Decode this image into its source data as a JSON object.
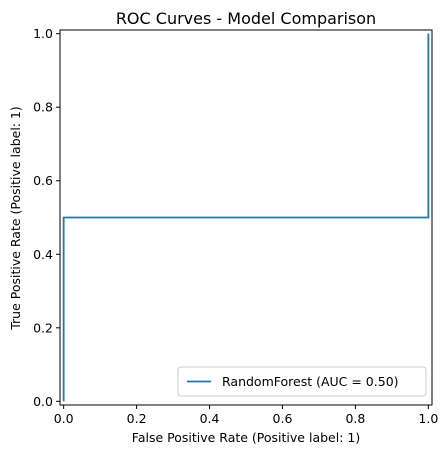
{
  "chart_data": {
    "type": "line",
    "title": "ROC Curves - Model Comparison",
    "xlabel": "False Positive Rate (Positive label: 1)",
    "ylabel": "True Positive Rate (Positive label: 1)",
    "xlim": [
      -0.01,
      1.01
    ],
    "ylim": [
      -0.01,
      1.01
    ],
    "x_ticks": [
      0.0,
      0.2,
      0.4,
      0.6,
      0.8,
      1.0
    ],
    "x_tick_labels": [
      "0.0",
      "0.2",
      "0.4",
      "0.6",
      "0.8",
      "1.0"
    ],
    "y_ticks": [
      0.0,
      0.2,
      0.4,
      0.6,
      0.8,
      1.0
    ],
    "y_tick_labels": [
      "0.0",
      "0.2",
      "0.4",
      "0.6",
      "0.8",
      "1.0"
    ],
    "grid": false,
    "legend_position": "lower-right",
    "series": [
      {
        "name": "RandomForest (AUC = 0.50)",
        "color": "#1f77b4",
        "x": [
          0.0,
          0.0,
          1.0,
          1.0
        ],
        "y": [
          0.0,
          0.5,
          0.5,
          1.0
        ]
      }
    ]
  }
}
